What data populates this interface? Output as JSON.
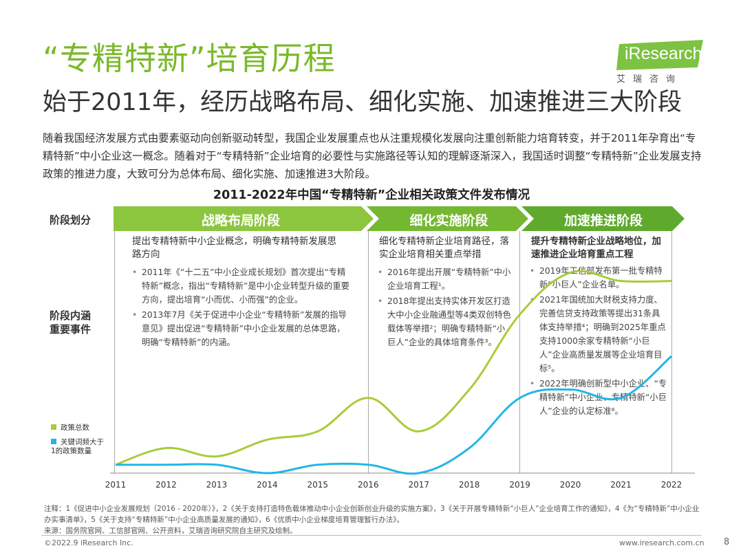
{
  "header": {
    "title": "“专精特新”培育历程",
    "subtitle": "始于2011年，经历战略布局、细化实施、加速推进三大阶段",
    "intro": "随着我国经济发展方式由要素驱动向创新驱动转型，我国企业发展重点也从注重规模化发展向注重创新能力培育转变，并于2011年孕育出“专精特新”中小企业这一概念。随着对于“专精特新”企业培育的必要性与实施路径等认知的理解逐渐深入，我国适时调整“专精特新”企业发展支持政策的推进力度，大致可分为总体布局、细化实施、加速推进3大阶段。"
  },
  "logo": {
    "text": "iResearch",
    "sub": "艾瑞咨询"
  },
  "colors": {
    "green": "#8cc63e",
    "dark_green": "#5faa2d",
    "cyan": "#21b6e6"
  },
  "chart_data": {
    "type": "line",
    "title": "2011-2022年中国“专精特新”企业相关政策文件发布情况",
    "x": [
      "2011",
      "2012",
      "2013",
      "2014",
      "2015",
      "2016",
      "2017",
      "2018",
      "2019",
      "2020",
      "2021",
      "2022"
    ],
    "series": [
      {
        "name": "政策总数",
        "color": "#a7cc39",
        "values": [
          0,
          2,
          1,
          3,
          4,
          8,
          4,
          9,
          18,
          23,
          22,
          22
        ]
      },
      {
        "name": "关键词频大于1的政策数量",
        "color": "#21b6e6",
        "values": [
          0,
          0,
          0,
          -1,
          0,
          0,
          -1,
          2,
          8,
          9,
          8,
          13
        ]
      }
    ],
    "ylim": [
      -1,
      26
    ],
    "grid": false,
    "legend_position": "left"
  },
  "labels": {
    "stage_row": "阶段划分",
    "content_row_1": "阶段内涵",
    "content_row_2": "重要事件"
  },
  "stages": [
    {
      "name": "战略布局阶段",
      "head": "提出专精特新中小企业概念，明确专精特新发展思路方向",
      "bullets": [
        "2011年《“十二五”中小企业成长规划》首次提出“专精特新”概念，指出“专精特新”是中小企业转型升级的重要方向，提出培育“小而优、小而强”的企业。",
        "2013年7月《关于促进中小企业“专精特新”发展的指导意见》提出促进“专精特新”中小企业发展的总体思路，明确“专精特新”的内涵。"
      ]
    },
    {
      "name": "细化实施阶段",
      "head": "细化专精特新企业培育路径，落实企业培育相关重点举措",
      "bullets": [
        "2016年提出开展“专精特新”中小企业培育工程¹。",
        "2018年提出支持实体开发区打造大中小企业融通型等4类双创特色载体等举措²；明确专精特新“小巨人”企业的具体培育条件³。"
      ]
    },
    {
      "name": "加速推进阶段",
      "head": "提升专精特新企业战略地位，加速推进企业培育重点工程",
      "bullets": [
        "2019年工信部发布第一批专精特新“小巨人”企业名单。",
        "2021年国统加大财税支持力度、完善信贷支持政策等提出31条具体支持举措⁴；明确到2025年重点支持1000余家专精特新“小巨人”企业高质量发展等企业培育目标⁵。",
        "2022年明确创新型中小企业、“专精特新”中小企业、专精特新“小巨人”企业的认定标准⁶。"
      ]
    }
  ],
  "notes": {
    "line1": "注释：1《促进中小企业发展规划（2016 - 2020年）》，2《关于支持打造特色载体推动中小企业创新创业升级的实施方案》，3《关于开展专精特新“小巨人”企业培育工作的通知》，4《为“专精特新”中小企业办实事清单》，5《关于支持“专精特新”中小企业高质量发展的通知》，6《优质中小企业梯度培育管理暂行办法》。",
    "line2": "来源：国务院官网、工信部官网、公开资料，艾瑞咨询研究院自主研究及绘制。"
  },
  "footer": {
    "copyright": "©2022.9 iResearch Inc.",
    "url": "www.iresearch.com.cn",
    "page": "8"
  }
}
